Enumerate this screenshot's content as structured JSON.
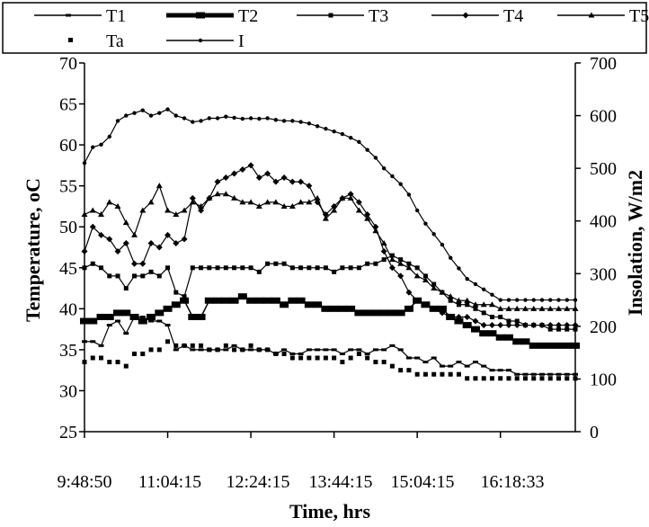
{
  "chart_data": {
    "type": "line",
    "title": "",
    "xlabel": "Time, hrs",
    "ylabel": "Temperature, oC",
    "y2label": "Insolation, W/m2",
    "ylim": [
      25,
      70
    ],
    "y2lim": [
      0,
      700
    ],
    "yticks": [
      "25",
      "30",
      "35",
      "40",
      "45",
      "50",
      "55",
      "60",
      "65",
      "70"
    ],
    "y2ticks": [
      "0",
      "100",
      "200",
      "300",
      "400",
      "500",
      "600",
      "700"
    ],
    "xtick_labels": [
      "9:48:50",
      "11:04:15",
      "12:24:15",
      "13:44:15",
      "15:04:15",
      "16:18:33"
    ],
    "x_points": 60,
    "legend_position": "top",
    "grid": false,
    "series": [
      {
        "name": "T1",
        "axis": "left",
        "marker": "dash",
        "values": [
          36,
          36,
          35.5,
          38,
          38.5,
          37,
          39,
          39,
          38.5,
          38.5,
          38,
          35,
          35.5,
          35,
          35,
          35,
          35,
          35,
          35.5,
          35,
          35,
          35,
          35,
          34.5,
          35,
          34.5,
          34.5,
          35,
          35,
          35,
          35,
          34.5,
          35,
          35,
          34.5,
          35,
          35,
          35.5,
          35,
          34,
          34,
          33.5,
          34,
          33,
          33,
          33.5,
          33,
          33.5,
          33,
          32.5,
          32.5,
          32.5,
          32,
          32,
          32,
          32,
          32,
          32,
          32,
          32
        ]
      },
      {
        "name": "T2",
        "axis": "left",
        "marker": "thick",
        "values": [
          38.5,
          38.5,
          39,
          39,
          39.5,
          39.5,
          39,
          38.5,
          39,
          39.5,
          40,
          40.5,
          41,
          39,
          39,
          41,
          41,
          41,
          41,
          41.5,
          41,
          41,
          41,
          41,
          40.5,
          41,
          41,
          40.5,
          40.5,
          40,
          40,
          40,
          40,
          39.5,
          39.5,
          39.5,
          39.5,
          39.5,
          39.5,
          40,
          41,
          40.5,
          40,
          40,
          39,
          38.5,
          38,
          37.5,
          37,
          37,
          36.5,
          36.5,
          36,
          36,
          35.5,
          35.5,
          35.5,
          35.5,
          35.5,
          35.5
        ]
      },
      {
        "name": "T3",
        "axis": "left",
        "marker": "square",
        "values": [
          45,
          45.5,
          45,
          44,
          44,
          42.5,
          44,
          44,
          44.5,
          44,
          45,
          42,
          41.5,
          45,
          45,
          45,
          45,
          45,
          45,
          45,
          45,
          44.5,
          45.5,
          45.5,
          45.5,
          45,
          45,
          45,
          45,
          45,
          44.5,
          45,
          45,
          45,
          45.5,
          45.5,
          46,
          46.5,
          46,
          45.5,
          45,
          44,
          43,
          42,
          41,
          40.5,
          40.5,
          40,
          39.5,
          39,
          39,
          38.5,
          38.5,
          38,
          38,
          38,
          37.5,
          37.5,
          37.5,
          37.5
        ]
      },
      {
        "name": "T4",
        "axis": "left",
        "marker": "diamond",
        "values": [
          47,
          50,
          49,
          48.5,
          47,
          48,
          45.5,
          45.5,
          48,
          47.5,
          49,
          48,
          48.5,
          53.5,
          52,
          53.5,
          55.5,
          56,
          56.5,
          57,
          57.5,
          56,
          56.5,
          55.5,
          56,
          55.5,
          55.5,
          55,
          53,
          51.5,
          52.5,
          53.5,
          54,
          53,
          51.5,
          50,
          47,
          45,
          44,
          42,
          41,
          40.5,
          40,
          39.5,
          39,
          39,
          39,
          38.5,
          38,
          38,
          38,
          38,
          38,
          38,
          38,
          38,
          38,
          38,
          38,
          38
        ]
      },
      {
        "name": "T5",
        "axis": "left",
        "marker": "triangle",
        "values": [
          51.5,
          52,
          51.5,
          53,
          52.5,
          50.5,
          49,
          52,
          53,
          55,
          52,
          51.5,
          52,
          53,
          52.5,
          53.5,
          54,
          54,
          53.5,
          53,
          53,
          52.5,
          53,
          53,
          52.5,
          52.5,
          53,
          53,
          53.5,
          51,
          52,
          53.5,
          53.5,
          52,
          51,
          49.5,
          48,
          46,
          45.5,
          45,
          44,
          43.5,
          42.5,
          42,
          41.5,
          41,
          41,
          40.5,
          40.5,
          40.5,
          40,
          40,
          40,
          40,
          40,
          40,
          40,
          40,
          40,
          40
        ]
      },
      {
        "name": "Ta",
        "axis": "left",
        "marker": "dot",
        "values": [
          33.5,
          34,
          34,
          33.5,
          33.5,
          33,
          34.5,
          34.5,
          35,
          35,
          36,
          35.5,
          35.5,
          35.5,
          35.5,
          35,
          35,
          35.5,
          35,
          35,
          35.5,
          35,
          35,
          34.5,
          34.5,
          34,
          34,
          34,
          34,
          34,
          34,
          33.5,
          34,
          34.5,
          34,
          33.5,
          33.5,
          33,
          32.5,
          32.5,
          32,
          32,
          32,
          32,
          32,
          32,
          31.5,
          31.5,
          31.5,
          31.5,
          31.5,
          31.5,
          31.5,
          31.5,
          31.5,
          31.5,
          31.5,
          31.5,
          31.5,
          31.5
        ]
      },
      {
        "name": "I",
        "axis": "right",
        "marker": "dot",
        "values": [
          510,
          540,
          545,
          560,
          590,
          600,
          605,
          610,
          600,
          605,
          612,
          600,
          595,
          588,
          590,
          595,
          595,
          598,
          596,
          594,
          595,
          594,
          595,
          592,
          590,
          590,
          588,
          585,
          580,
          575,
          570,
          565,
          558,
          550,
          535,
          520,
          500,
          485,
          470,
          450,
          420,
          395,
          375,
          355,
          330,
          310,
          290,
          280,
          270,
          260,
          250,
          250,
          250,
          250,
          250,
          250,
          250,
          250,
          250,
          250
        ]
      }
    ]
  }
}
